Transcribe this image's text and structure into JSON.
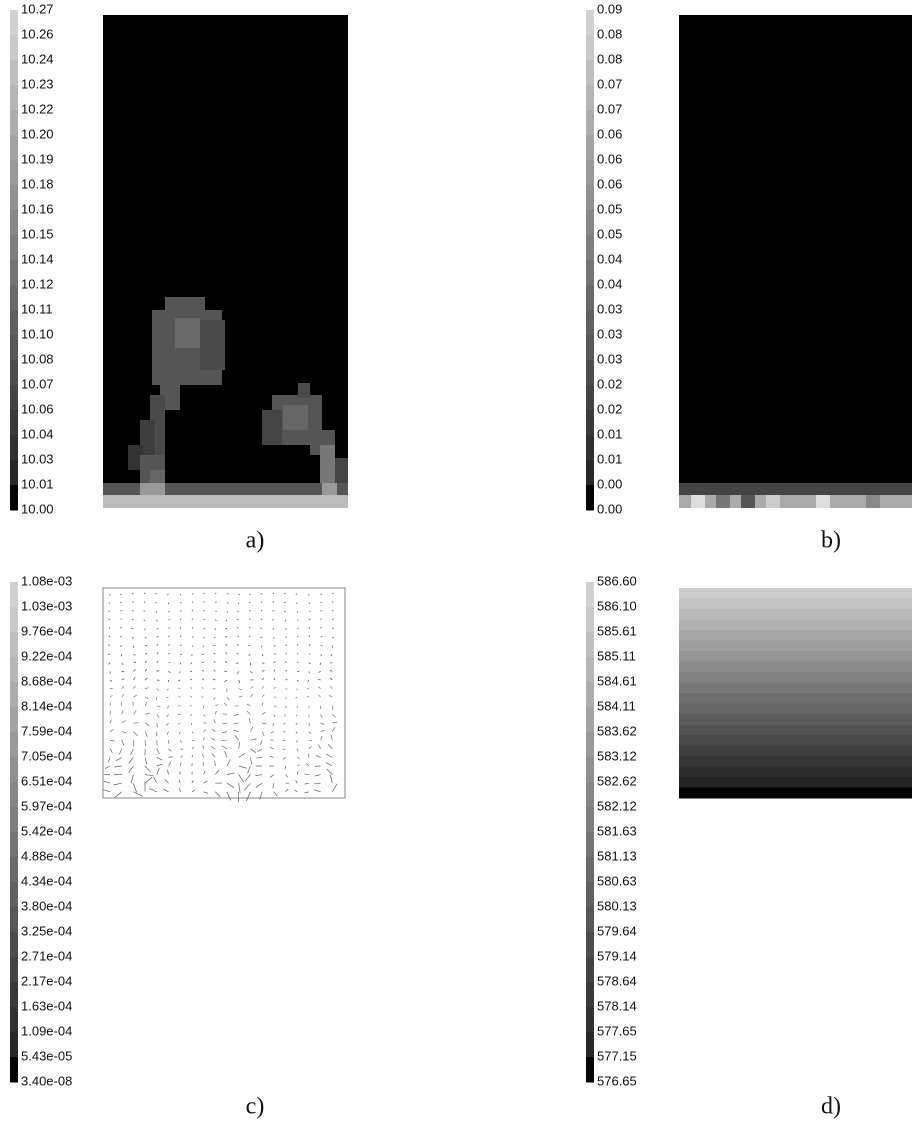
{
  "panels": [
    {
      "caption": "a)",
      "colorbar_labels": [
        "10.27",
        "10.26",
        "10.24",
        "10.23",
        "10.22",
        "10.20",
        "10.19",
        "10.18",
        "10.16",
        "10.15",
        "10.14",
        "10.12",
        "10.11",
        "10.10",
        "10.08",
        "10.07",
        "10.06",
        "10.04",
        "10.03",
        "10.01",
        "10.00"
      ]
    },
    {
      "caption": "b)",
      "colorbar_labels": [
        "0.09",
        "0.08",
        "0.08",
        "0.07",
        "0.07",
        "0.06",
        "0.06",
        "0.06",
        "0.05",
        "0.05",
        "0.04",
        "0.04",
        "0.03",
        "0.03",
        "0.03",
        "0.02",
        "0.02",
        "0.01",
        "0.01",
        "0.00",
        "0.00"
      ]
    },
    {
      "caption": "c)",
      "colorbar_labels": [
        "1.08e-03",
        "1.03e-03",
        "9.76e-04",
        "9.22e-04",
        "8.68e-04",
        "8.14e-04",
        "7.59e-04",
        "7.05e-04",
        "6.51e-04",
        "5.97e-04",
        "5.42e-04",
        "4.88e-04",
        "4.34e-04",
        "3.80e-04",
        "3.25e-04",
        "2.71e-04",
        "2.17e-04",
        "1.63e-04",
        "1.09e-04",
        "5.43e-05",
        "3.40e-08"
      ]
    },
    {
      "caption": "d)",
      "colorbar_labels": [
        "586.60",
        "586.10",
        "585.61",
        "585.11",
        "584.61",
        "584.11",
        "583.62",
        "583.12",
        "582.62",
        "582.12",
        "581.63",
        "581.13",
        "580.63",
        "580.13",
        "579.64",
        "579.14",
        "578.64",
        "578.14",
        "577.65",
        "577.15",
        "576.65"
      ]
    }
  ]
}
